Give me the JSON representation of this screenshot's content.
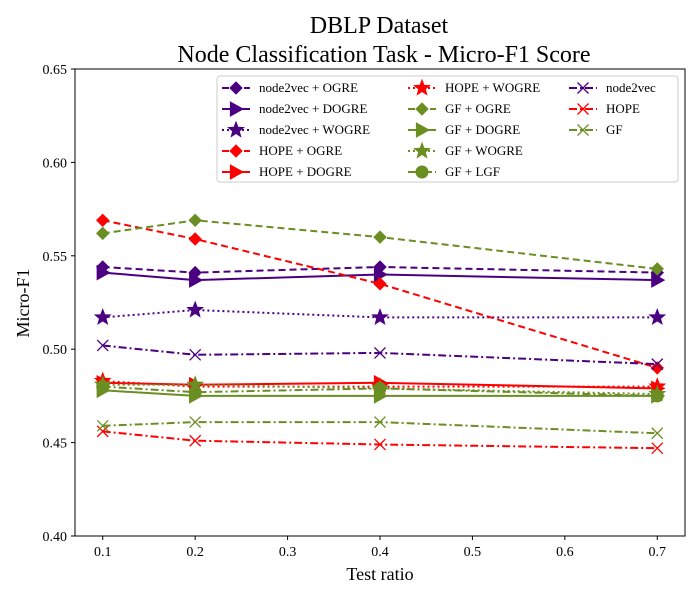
{
  "chart_data": {
    "type": "line",
    "title": "DBLP Dataset",
    "subtitle": "Node Classification Task - Micro-F1 Score",
    "xlabel": "Test ratio",
    "ylabel": "Micro-F1",
    "x": [
      0.1,
      0.2,
      0.4,
      0.7
    ],
    "xlim": [
      0.07,
      0.73
    ],
    "ylim": [
      0.4,
      0.65
    ],
    "xticks": [
      "0.1",
      "0.2",
      "0.3",
      "0.4",
      "0.5",
      "0.6",
      "0.7"
    ],
    "yticks": [
      "0.40",
      "0.45",
      "0.50",
      "0.55",
      "0.60",
      "0.65"
    ],
    "grid": false,
    "legend_position": "top-right",
    "series": [
      {
        "name": "node2vec + OGRE",
        "color": "#4b0082",
        "dash": "dashed",
        "marker": "diamond",
        "values": [
          0.544,
          0.541,
          0.544,
          0.541
        ]
      },
      {
        "name": "node2vec + DOGRE",
        "color": "#4b0082",
        "dash": "solid",
        "marker": "triangle-right",
        "values": [
          0.541,
          0.537,
          0.54,
          0.537
        ]
      },
      {
        "name": "node2vec + WOGRE",
        "color": "#4b0082",
        "dash": "dotted",
        "marker": "star",
        "values": [
          0.517,
          0.521,
          0.517,
          0.517
        ]
      },
      {
        "name": "HOPE + OGRE",
        "color": "#ff0000",
        "dash": "dashed",
        "marker": "diamond",
        "values": [
          0.569,
          0.559,
          0.535,
          0.49
        ]
      },
      {
        "name": "HOPE + DOGRE",
        "color": "#ff0000",
        "dash": "solid",
        "marker": "triangle-right",
        "values": [
          0.482,
          0.481,
          0.482,
          0.479
        ]
      },
      {
        "name": "HOPE + WOGRE",
        "color": "#ff0000",
        "dash": "dotted",
        "marker": "star",
        "values": [
          0.483,
          0.48,
          0.48,
          0.48
        ]
      },
      {
        "name": "GF + OGRE",
        "color": "#6b8e23",
        "dash": "dashed",
        "marker": "diamond",
        "values": [
          0.562,
          0.569,
          0.56,
          0.543
        ]
      },
      {
        "name": "GF + DOGRE",
        "color": "#6b8e23",
        "dash": "solid",
        "marker": "triangle-right",
        "values": [
          0.478,
          0.475,
          0.475,
          0.475
        ]
      },
      {
        "name": "GF + WOGRE",
        "color": "#6b8e23",
        "dash": "dotted",
        "marker": "star",
        "values": [
          0.481,
          0.481,
          0.479,
          0.476
        ]
      },
      {
        "name": "GF + LGF",
        "color": "#6b8e23",
        "dash": "dashdot",
        "marker": "circle",
        "values": [
          0.48,
          0.477,
          0.479,
          0.475
        ]
      },
      {
        "name": "node2vec",
        "color": "#4b0082",
        "dash": "dashdot",
        "marker": "x",
        "values": [
          0.502,
          0.497,
          0.498,
          0.492
        ]
      },
      {
        "name": "HOPE",
        "color": "#ff0000",
        "dash": "dashdot",
        "marker": "x",
        "values": [
          0.456,
          0.451,
          0.449,
          0.447
        ]
      },
      {
        "name": "GF",
        "color": "#6b8e23",
        "dash": "dashdot",
        "marker": "x",
        "values": [
          0.459,
          0.461,
          0.461,
          0.455
        ]
      }
    ]
  }
}
